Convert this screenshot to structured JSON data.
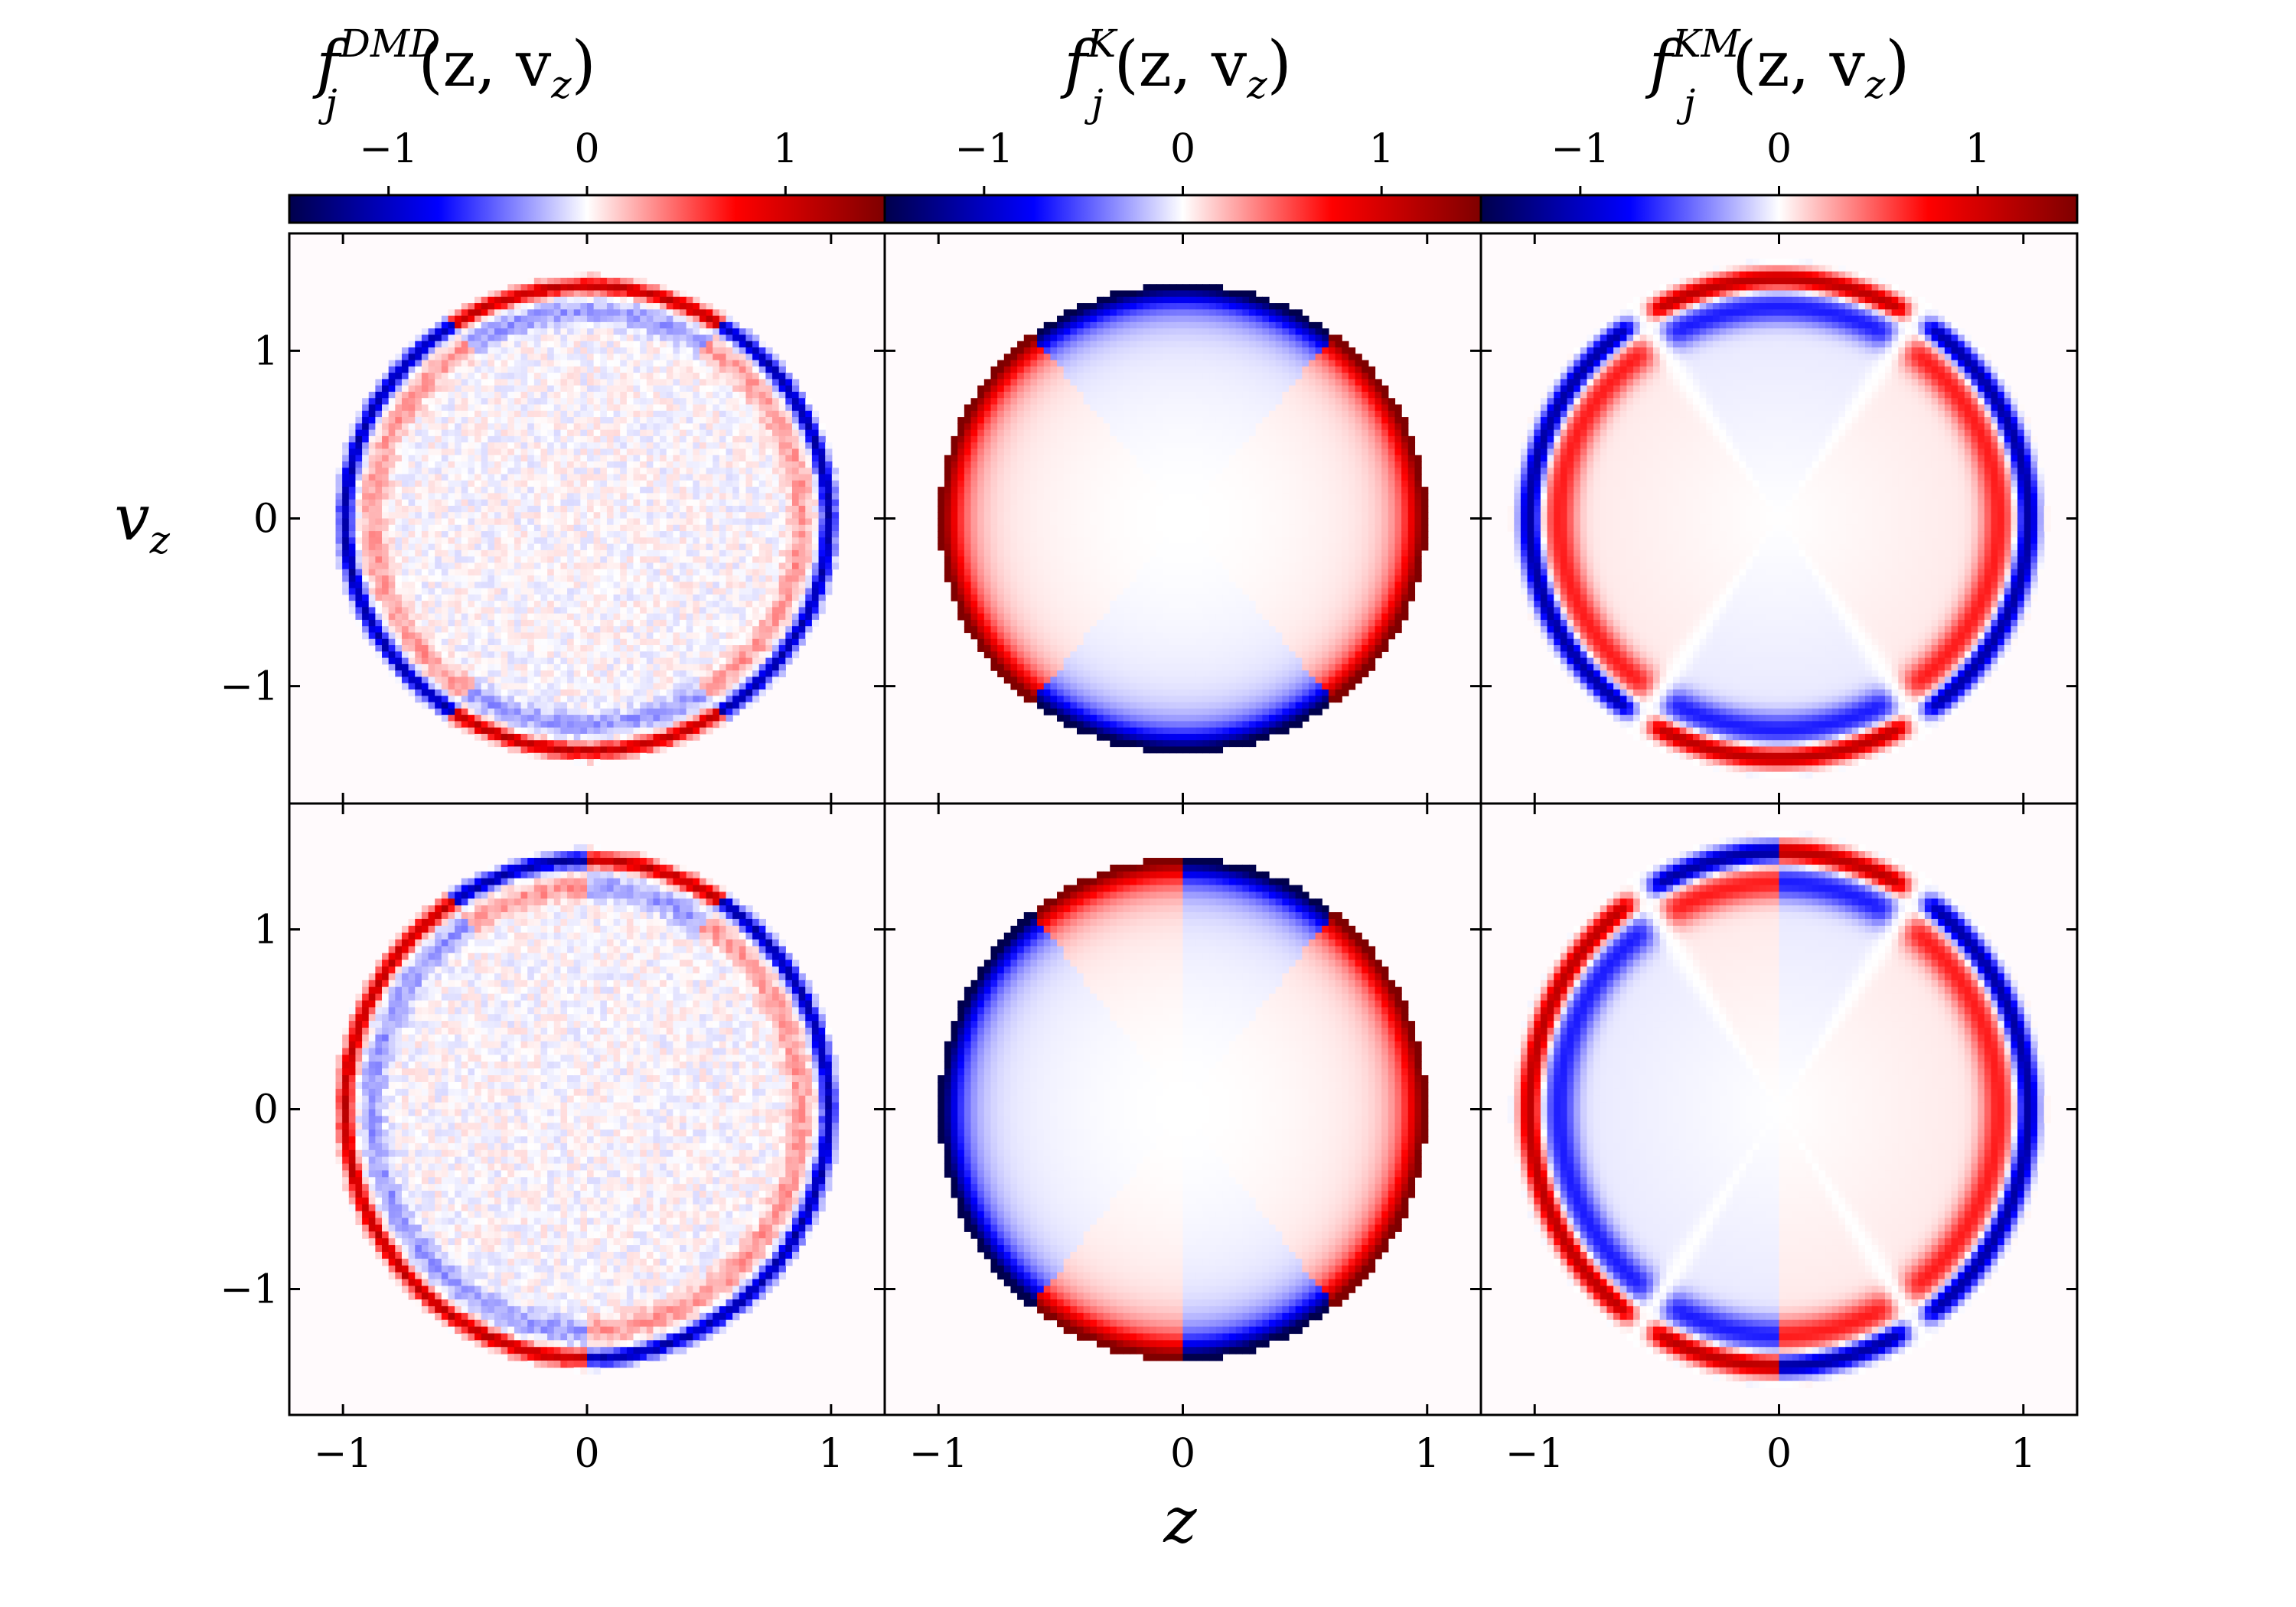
{
  "figure": {
    "xlabel": "z",
    "ylabel_main": "v",
    "ylabel_sub": "z"
  },
  "colorbars": [
    {
      "main": "f",
      "sub": "j",
      "sup": "DMD",
      "args": "(z, v",
      "args_sub": "z",
      "close": ")"
    },
    {
      "main": "f",
      "sub": "j",
      "sup": "K",
      "args": "(z, v",
      "args_sub": "z",
      "close": ")"
    },
    {
      "main": "f",
      "sub": "j",
      "sup": "KM",
      "args": "(z, v",
      "args_sub": "z",
      "close": ")"
    }
  ],
  "colors": {
    "colormap": "seismic",
    "stops": [
      "#00004c",
      "#0000ff",
      "#ffffff",
      "#ff0000",
      "#7f0000"
    ],
    "axis": "#000000",
    "background_tint": "#fffafc"
  },
  "chart_data": {
    "type": "heatmap",
    "colorbar": {
      "ticks": [
        -1,
        0,
        1
      ],
      "tick_labels": [
        "−1",
        "0",
        "1"
      ],
      "range": [
        -1.5,
        1.5
      ]
    },
    "xlim": [
      -1.22,
      1.22
    ],
    "ylim": [
      -1.7,
      1.7
    ],
    "x_ticks": [
      -1,
      0,
      1
    ],
    "x_tick_labels": [
      "−1",
      "0",
      "1"
    ],
    "y_ticks": [
      -1,
      0,
      1
    ],
    "y_tick_labels": [
      "−1",
      "0",
      "1"
    ],
    "panels": [
      {
        "row": 0,
        "col": 0,
        "model": "DMD",
        "mode": "even",
        "noisy": true
      },
      {
        "row": 0,
        "col": 1,
        "model": "K",
        "mode": "even",
        "noisy": false
      },
      {
        "row": 0,
        "col": 2,
        "model": "KM",
        "mode": "even",
        "noisy": false
      },
      {
        "row": 1,
        "col": 0,
        "model": "DMD",
        "mode": "odd",
        "noisy": true
      },
      {
        "row": 1,
        "col": 1,
        "model": "K",
        "mode": "odd",
        "noisy": false
      },
      {
        "row": 1,
        "col": 2,
        "model": "KM",
        "mode": "odd",
        "noisy": false
      }
    ],
    "support_boundary": {
      "z_max": 1.0,
      "v_max": 1.4
    }
  }
}
